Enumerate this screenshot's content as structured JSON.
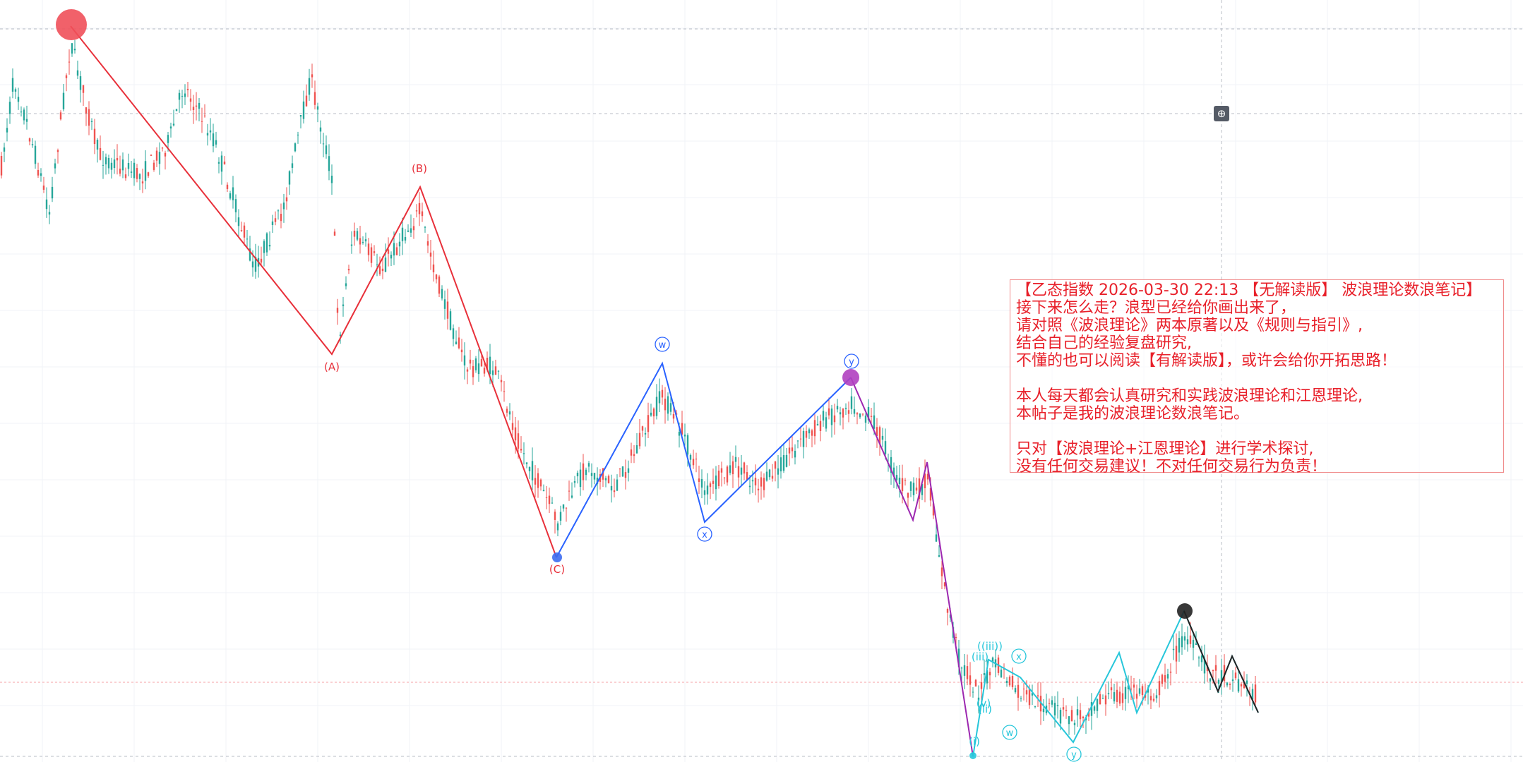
{
  "chart_data": {
    "type": "line",
    "title": "",
    "xlabel": "",
    "ylabel": "",
    "grid": true,
    "candlestick_colors": {
      "up": "#26a69a",
      "down": "#ef5350"
    },
    "wave_colors": {
      "red": "#e8303a",
      "blue": "#2962ff",
      "purple": "#9c27b0",
      "teal": "#26c6da",
      "black": "#222222"
    },
    "series": [
      {
        "color": "#e8303a",
        "points": [
          [
            100,
            37
          ],
          [
            470,
            502
          ],
          [
            595,
            265
          ],
          [
            788,
            790
          ]
        ]
      },
      {
        "color": "#2962ff",
        "points": [
          [
            788,
            790
          ],
          [
            938,
            515
          ],
          [
            998,
            740
          ],
          [
            1205,
            535
          ]
        ]
      },
      {
        "color": "#9c27b0",
        "points": [
          [
            1205,
            535
          ],
          [
            1293,
            737
          ],
          [
            1313,
            655
          ],
          [
            1378,
            1072
          ]
        ]
      },
      {
        "color": "#26c6da",
        "points": [
          [
            1378,
            1072
          ],
          [
            1400,
            935
          ],
          [
            1445,
            960
          ],
          [
            1520,
            1052
          ],
          [
            1585,
            925
          ],
          [
            1610,
            1010
          ],
          [
            1677,
            866
          ],
          [
            1725,
            980
          ],
          [
            1745,
            930
          ],
          [
            1782,
            1010
          ]
        ]
      },
      {
        "color": "#222222",
        "points": [
          [
            1677,
            866
          ],
          [
            1725,
            980
          ],
          [
            1745,
            930
          ],
          [
            1782,
            1010
          ]
        ]
      }
    ],
    "wave_labels": [
      {
        "text": "(A)",
        "x": 470,
        "y": 525,
        "color": "#e8303a"
      },
      {
        "text": "(B)",
        "x": 594,
        "y": 244,
        "color": "#e8303a"
      },
      {
        "text": "(C)",
        "x": 789,
        "y": 812,
        "color": "#e8303a"
      },
      {
        "text": "w",
        "x": 938,
        "y": 493,
        "color": "#2962ff",
        "circled": true
      },
      {
        "text": "x",
        "x": 998,
        "y": 762,
        "color": "#2962ff",
        "circled": true
      },
      {
        "text": "y",
        "x": 1206,
        "y": 517,
        "color": "#2962ff",
        "circled": true
      },
      {
        "text": "x",
        "x": 1443,
        "y": 935,
        "color": "#26c6da",
        "circled": true
      },
      {
        "text": "w",
        "x": 1430,
        "y": 1043,
        "color": "#26c6da",
        "circled": true
      },
      {
        "text": "y",
        "x": 1521,
        "y": 1074,
        "color": "#26c6da",
        "circled": true
      },
      {
        "text": "((iii))",
        "x": 1402,
        "y": 921,
        "color": "#26c6da"
      },
      {
        "text": "(iii)",
        "x": 1388,
        "y": 936,
        "color": "#26c6da"
      },
      {
        "text": "(v)",
        "x": 1393,
        "y": 1002,
        "color": "#26c6da"
      },
      {
        "text": "(ii)",
        "x": 1395,
        "y": 1010,
        "color": "#26c6da"
      },
      {
        "text": "(i)",
        "x": 1380,
        "y": 1056,
        "color": "#26c6da"
      }
    ],
    "markers": [
      {
        "x": 101,
        "y": 35,
        "r": 22,
        "color": "#f0505a"
      },
      {
        "x": 789,
        "y": 790,
        "r": 7,
        "color": "#3d6bf0"
      },
      {
        "x": 1205,
        "y": 535,
        "r": 12,
        "color": "#b040c0"
      },
      {
        "x": 1678,
        "y": 866,
        "r": 11,
        "color": "#222222"
      },
      {
        "x": 1378,
        "y": 1071,
        "r": 5,
        "color": "#26c6da"
      }
    ]
  },
  "note": {
    "lines": [
      "【乙态指数 2026-03-30 22:13 【无解读版】 波浪理论数浪笔记】",
      "接下来怎么走？浪型已经给你画出来了，",
      "请对照《波浪理论》两本原著以及《规则与指引》,",
      "结合自己的经验复盘研究,",
      "不懂的也可以阅读【有解读版】，或许会给你开拓思路！",
      "",
      "本人每天都会认真研究和实践波浪理论和江恩理论,",
      "本帖子是我的波浪理论数浪笔记。",
      "",
      "只对【波浪理论+江恩理论】进行学术探讨,",
      "没有任何交易建议！不对任何交易行为负责！"
    ]
  },
  "zoom_icon": "crosshair-zoom-icon"
}
